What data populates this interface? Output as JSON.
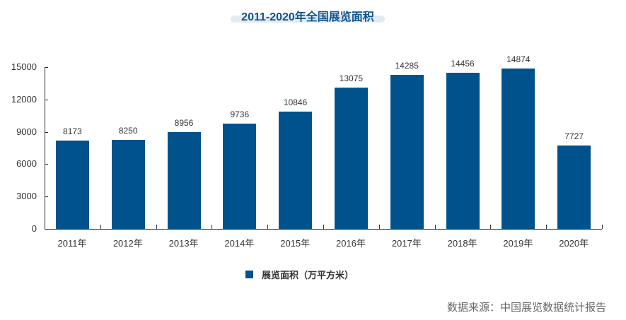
{
  "header": {
    "title": "2011-2020年全国展览面积"
  },
  "legend": {
    "label": "展览面积（万平方米）",
    "color": "#00528c"
  },
  "source": {
    "text": "数据来源：中国展览数据统计报告"
  },
  "axis": {
    "y_ticks": [
      "0",
      "3000",
      "6000",
      "9000",
      "12000",
      "15000"
    ],
    "x_labels": [
      "2011年",
      "2012年",
      "2013年",
      "2014年",
      "2015年",
      "2016年",
      "2017年",
      "2018年",
      "2019年",
      "2020年"
    ]
  },
  "bars": {
    "labels": [
      "8173",
      "8250",
      "8956",
      "9736",
      "10846",
      "13075",
      "14285",
      "14456",
      "14874",
      "7727"
    ]
  },
  "chart_data": {
    "type": "bar",
    "title": "2011-2020年全国展览面积",
    "categories": [
      "2011年",
      "2012年",
      "2013年",
      "2014年",
      "2015年",
      "2016年",
      "2017年",
      "2018年",
      "2019年",
      "2020年"
    ],
    "series": [
      {
        "name": "展览面积（万平方米）",
        "values": [
          8173,
          8250,
          8956,
          9736,
          10846,
          13075,
          14285,
          14456,
          14874,
          7727
        ],
        "color": "#00528c"
      }
    ],
    "xlabel": "",
    "ylabel": "",
    "ylim": [
      0,
      15000
    ],
    "yticks": [
      0,
      3000,
      6000,
      9000,
      12000,
      15000
    ],
    "grid": false,
    "legend_position": "bottom",
    "annotations": [
      "数据来源：中国展览数据统计报告"
    ]
  }
}
